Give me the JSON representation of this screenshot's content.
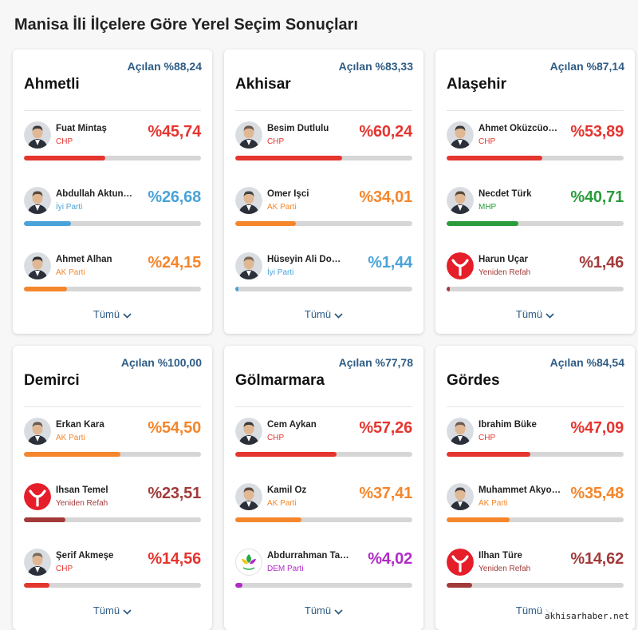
{
  "page_title": "Manisa İli İlçelere Göre Yerel Seçim Sonuçları",
  "show_all_label": "Tümü",
  "watermark": "akhisarhaber.net",
  "party_colors": {
    "CHP": "#e5352f",
    "AK Parti": "#f5862b",
    "İyi Parti": "#4aa3d8",
    "MHP": "#2a9c3b",
    "Yeniden Refah": "#a23a3a",
    "DEM Parti": "#b22ac8"
  },
  "districts": [
    {
      "name": "Ahmetli",
      "opened": "Açılan %88,24",
      "candidates": [
        {
          "name": "Fuat Mintaş",
          "party": "CHP",
          "pct": "%45,74",
          "value": 45.74,
          "avatar": "portrait-icon"
        },
        {
          "name": "Abdullah Aktun…",
          "party": "İyi Parti",
          "pct": "%26,68",
          "value": 26.68,
          "avatar": "portrait-icon"
        },
        {
          "name": "Ahmet Alhan",
          "party": "AK Parti",
          "pct": "%24,15",
          "value": 24.15,
          "avatar": "portrait-icon"
        }
      ]
    },
    {
      "name": "Akhisar",
      "opened": "Açılan %83,33",
      "candidates": [
        {
          "name": "Besim Dutlulu",
          "party": "CHP",
          "pct": "%60,24",
          "value": 60.24,
          "avatar": "portrait-icon"
        },
        {
          "name": "Ömer İşci",
          "party": "AK Parti",
          "pct": "%34,01",
          "value": 34.01,
          "avatar": "portrait-icon"
        },
        {
          "name": "Hüseyin Ali Do…",
          "party": "İyi Parti",
          "pct": "%1,44",
          "value": 1.44,
          "avatar": "portrait-icon"
        }
      ]
    },
    {
      "name": "Alaşehir",
      "opened": "Açılan %87,14",
      "candidates": [
        {
          "name": "Ahmet Öküzcüoğ…",
          "party": "CHP",
          "pct": "%53,89",
          "value": 53.89,
          "avatar": "portrait-icon"
        },
        {
          "name": "Necdet Türk",
          "party": "MHP",
          "pct": "%40,71",
          "value": 40.71,
          "avatar": "portrait-icon"
        },
        {
          "name": "Harun Uçar",
          "party": "Yeniden Refah",
          "pct": "%1,46",
          "value": 1.46,
          "avatar": "yeniden-refah-logo-icon"
        }
      ]
    },
    {
      "name": "Demirci",
      "opened": "Açılan %100,00",
      "candidates": [
        {
          "name": "Erkan Kara",
          "party": "AK Parti",
          "pct": "%54,50",
          "value": 54.5,
          "avatar": "portrait-icon"
        },
        {
          "name": "İhsan Temel",
          "party": "Yeniden Refah",
          "pct": "%23,51",
          "value": 23.51,
          "avatar": "yeniden-refah-logo-icon"
        },
        {
          "name": "Şerif Akmeşe",
          "party": "CHP",
          "pct": "%14,56",
          "value": 14.56,
          "avatar": "portrait-icon"
        }
      ]
    },
    {
      "name": "Gölmarmara",
      "opened": "Açılan %77,78",
      "candidates": [
        {
          "name": "Cem Aykan",
          "party": "CHP",
          "pct": "%57,26",
          "value": 57.26,
          "avatar": "portrait-icon"
        },
        {
          "name": "Kamil Öz",
          "party": "AK Parti",
          "pct": "%37,41",
          "value": 37.41,
          "avatar": "portrait-icon"
        },
        {
          "name": "Abdurrahman Ta…",
          "party": "DEM Parti",
          "pct": "%4,02",
          "value": 4.02,
          "avatar": "dem-parti-logo-icon"
        }
      ]
    },
    {
      "name": "Gördes",
      "opened": "Açılan %84,54",
      "candidates": [
        {
          "name": "İbrahim Büke",
          "party": "CHP",
          "pct": "%47,09",
          "value": 47.09,
          "avatar": "portrait-icon"
        },
        {
          "name": "Muhammet Akyol…",
          "party": "AK Parti",
          "pct": "%35,48",
          "value": 35.48,
          "avatar": "portrait-icon"
        },
        {
          "name": "İlhan Türe",
          "party": "Yeniden Refah",
          "pct": "%14,62",
          "value": 14.62,
          "avatar": "yeniden-refah-logo-icon"
        }
      ]
    }
  ]
}
